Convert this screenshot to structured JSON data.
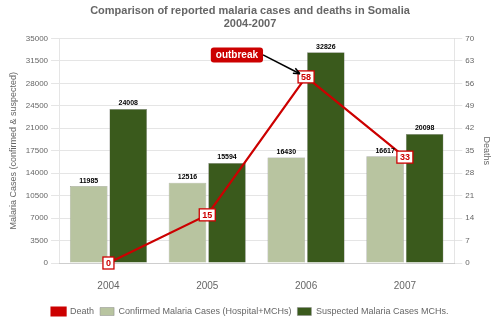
{
  "chart_data": {
    "type": "bar",
    "title": "Comparison of reported malaria cases and deaths in Somalia",
    "subtitle": "2004-2007",
    "categories": [
      "2004",
      "2005",
      "2006",
      "2007"
    ],
    "series": [
      {
        "name": "Confirmed Malaria Cases (Hospital+MCHs)",
        "type": "bar",
        "color": "#b8c4a0",
        "values": [
          11985,
          12516,
          16430,
          16617
        ]
      },
      {
        "name": "Suspected Malaria Cases MCHs.",
        "type": "bar",
        "color": "#3a5a1c",
        "values": [
          24008,
          15594,
          32826,
          20098
        ]
      },
      {
        "name": "Death",
        "type": "line",
        "axis": "y2",
        "color": "#cc0000",
        "marker": "circle",
        "line_style": "solid",
        "values": [
          0,
          15,
          58,
          33
        ]
      }
    ],
    "ylabel": "Malaria Cases (confirmed & suspected)",
    "y2label": "Deaths",
    "ylim": [
      0,
      35000
    ],
    "yticks": [
      0,
      3500,
      7000,
      10500,
      14000,
      17500,
      21000,
      24500,
      28000,
      31500,
      35000
    ],
    "y2lim": [
      0,
      70
    ],
    "y2ticks": [
      0,
      7,
      14,
      21,
      28,
      35,
      42,
      49,
      56,
      63,
      70
    ],
    "grid": true,
    "legend": "bottom",
    "data_labels": true,
    "annotations": [
      {
        "text": "outbreak",
        "x": "2006",
        "y": 58,
        "axis": "y2",
        "color": "#cc0000"
      }
    ]
  }
}
